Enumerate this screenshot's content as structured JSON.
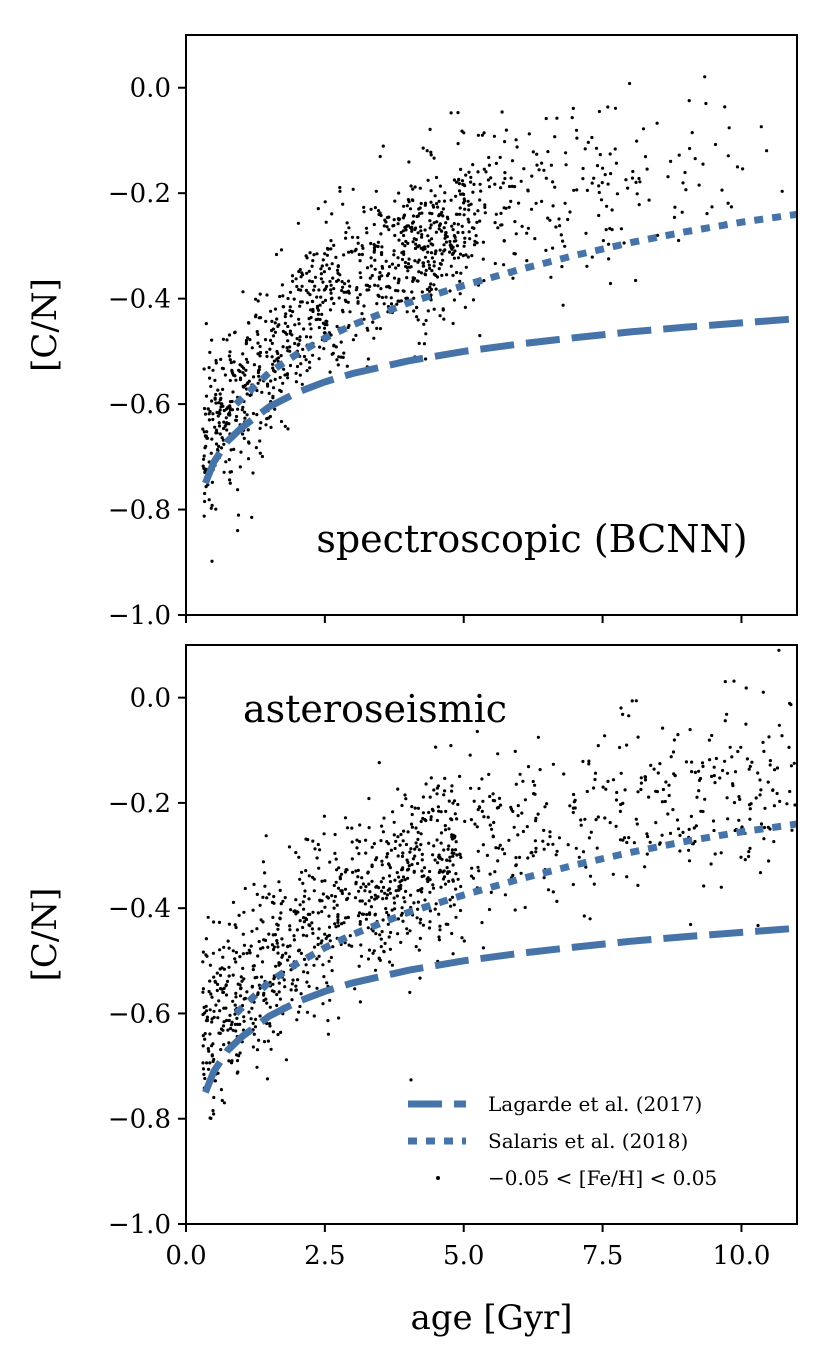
{
  "chart_data": [
    {
      "type": "scatter",
      "title": "spectroscopic (BCNN)",
      "xlabel": "",
      "ylabel": "[C/N]",
      "xlim": [
        0,
        11
      ],
      "ylim": [
        -1.0,
        0.1
      ],
      "xticks": [
        0,
        2.5,
        5,
        7.5,
        10
      ],
      "xtick_labels": [],
      "yticks": [
        0.0,
        -0.2,
        -0.4,
        -0.6,
        -0.8,
        -1.0
      ],
      "ytick_labels": [
        "0.0",
        "−0.2",
        "−0.4",
        "−0.6",
        "−0.8",
        "−1.0"
      ],
      "grid": false,
      "scatter_series": {
        "name": "−0.05 < [Fe/H] < 0.05",
        "n_points": 1200,
        "x_range": [
          0.3,
          10.8
        ],
        "trend": "rises from about -0.7 at 0.5 Gyr to about -0.2 at 8-10 Gyr; scatter about 0.08 dex"
      },
      "series": [
        {
          "name": "Lagarde et al. (2017)",
          "style": "dashed",
          "x": [
            0.35,
            0.5,
            0.75,
            1.0,
            1.5,
            2.0,
            2.5,
            3.0,
            4.0,
            5.0,
            6.0,
            7.0,
            8.0,
            9.0,
            10.0,
            11.0
          ],
          "y": [
            -0.75,
            -0.71,
            -0.67,
            -0.645,
            -0.605,
            -0.578,
            -0.558,
            -0.542,
            -0.518,
            -0.5,
            -0.486,
            -0.474,
            -0.463,
            -0.454,
            -0.446,
            -0.438
          ]
        },
        {
          "name": "Salaris et al. (2018)",
          "style": "dotted",
          "x": [
            0.9,
            1.0,
            1.5,
            2.0,
            2.5,
            3.0,
            4.0,
            5.0,
            6.0,
            7.0,
            8.0,
            9.0,
            10.0,
            11.0
          ],
          "y": [
            -0.6,
            -0.59,
            -0.54,
            -0.505,
            -0.475,
            -0.45,
            -0.408,
            -0.375,
            -0.345,
            -0.318,
            -0.294,
            -0.273,
            -0.255,
            -0.24
          ]
        }
      ]
    },
    {
      "type": "scatter",
      "title": "asteroseismic",
      "xlabel": "age [Gyr]",
      "ylabel": "[C/N]",
      "xlim": [
        0,
        11
      ],
      "ylim": [
        -1.0,
        0.1
      ],
      "xticks": [
        0,
        2.5,
        5,
        7.5,
        10
      ],
      "xtick_labels": [
        "0.0",
        "2.5",
        "5.0",
        "7.5",
        "10.0"
      ],
      "yticks": [
        0.0,
        -0.2,
        -0.4,
        -0.6,
        -0.8,
        -1.0
      ],
      "ytick_labels": [
        "0.0",
        "−0.2",
        "−0.4",
        "−0.6",
        "−0.8",
        "−1.0"
      ],
      "grid": false,
      "legend": {
        "position": "lower-right",
        "entries": [
          "Lagarde et al. (2017)",
          "Salaris et al. (2018)",
          "−0.05 < [Fe/H] < 0.05"
        ]
      },
      "scatter_series": {
        "name": "−0.05 < [Fe/H] < 0.05",
        "n_points": 1200,
        "x_range": [
          0.3,
          11.0
        ],
        "trend": "rises from about -0.65 at 0.5 Gyr to about -0.22 at 9-11 Gyr; scatter about 0.1 dex"
      },
      "series": [
        {
          "name": "Lagarde et al. (2017)",
          "style": "dashed",
          "x": [
            0.35,
            0.5,
            0.75,
            1.0,
            1.5,
            2.0,
            2.5,
            3.0,
            4.0,
            5.0,
            6.0,
            7.0,
            8.0,
            9.0,
            10.0,
            11.0
          ],
          "y": [
            -0.75,
            -0.71,
            -0.67,
            -0.645,
            -0.605,
            -0.578,
            -0.558,
            -0.542,
            -0.518,
            -0.5,
            -0.486,
            -0.474,
            -0.463,
            -0.454,
            -0.446,
            -0.438
          ]
        },
        {
          "name": "Salaris et al. (2018)",
          "style": "dotted",
          "x": [
            0.9,
            1.0,
            1.5,
            2.0,
            2.5,
            3.0,
            4.0,
            5.0,
            6.0,
            7.0,
            8.0,
            9.0,
            10.0,
            11.0
          ],
          "y": [
            -0.6,
            -0.59,
            -0.54,
            -0.505,
            -0.475,
            -0.45,
            -0.408,
            -0.375,
            -0.345,
            -0.318,
            -0.294,
            -0.273,
            -0.255,
            -0.24
          ]
        }
      ]
    }
  ],
  "colors": {
    "model_line": "#4674a8",
    "points": "#000000",
    "axes": "#000000"
  }
}
